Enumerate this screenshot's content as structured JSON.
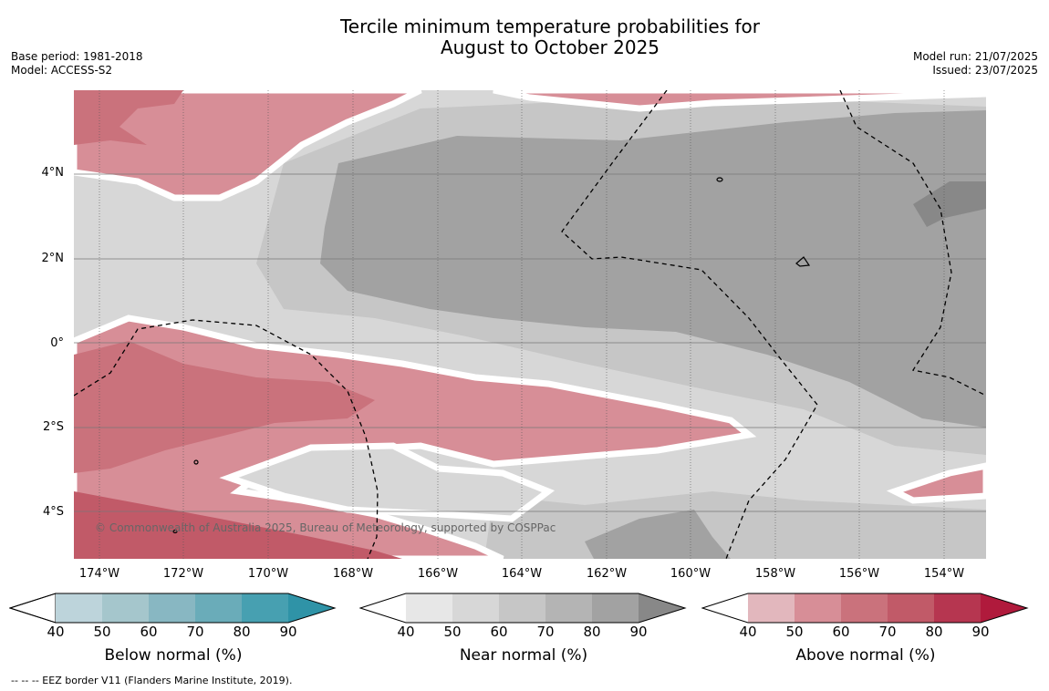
{
  "title_line1": "Tercile minimum temperature probabilities for",
  "title_line2": "August to October 2025",
  "base_period": "Base period: 1981-2018",
  "model": "Model: ACCESS-S2",
  "model_run": "Model run: 21/07/2025",
  "issued": "Issued: 23/07/2025",
  "lat_labels": [
    "4°N",
    "2°N",
    "0°",
    "2°S",
    "4°S"
  ],
  "lon_labels": [
    "174°W",
    "172°W",
    "170°W",
    "168°W",
    "166°W",
    "164°W",
    "162°W",
    "160°W",
    "158°W",
    "156°W",
    "154°W"
  ],
  "copyright": "© Commonwealth of Australia 2025, Bureau of Meteorology, supported by COSPPac",
  "footer": "--  --  -- EEZ border V11 (Flanders Marine Institute, 2019).",
  "colorbars": [
    {
      "title": "Below normal (%)",
      "ticks": [
        "40",
        "50",
        "60",
        "70",
        "80",
        "90"
      ],
      "colors": [
        "#ffffff",
        "#bdd4db",
        "#a5c6cc",
        "#88b7c2",
        "#6aacb9",
        "#47a0b1",
        "#2f93a7"
      ]
    },
    {
      "title": "Near normal (%)",
      "ticks": [
        "40",
        "50",
        "60",
        "70",
        "80",
        "90"
      ],
      "colors": [
        "#ffffff",
        "#e7e7e7",
        "#d7d7d7",
        "#c6c6c6",
        "#b4b4b4",
        "#a2a2a2",
        "#888888"
      ]
    },
    {
      "title": "Above normal (%)",
      "ticks": [
        "40",
        "50",
        "60",
        "70",
        "80",
        "90"
      ],
      "colors": [
        "#ffffff",
        "#e2b7bd",
        "#d78e97",
        "#ca727c",
        "#c15a68",
        "#b63650",
        "#b01a3c"
      ]
    }
  ]
}
